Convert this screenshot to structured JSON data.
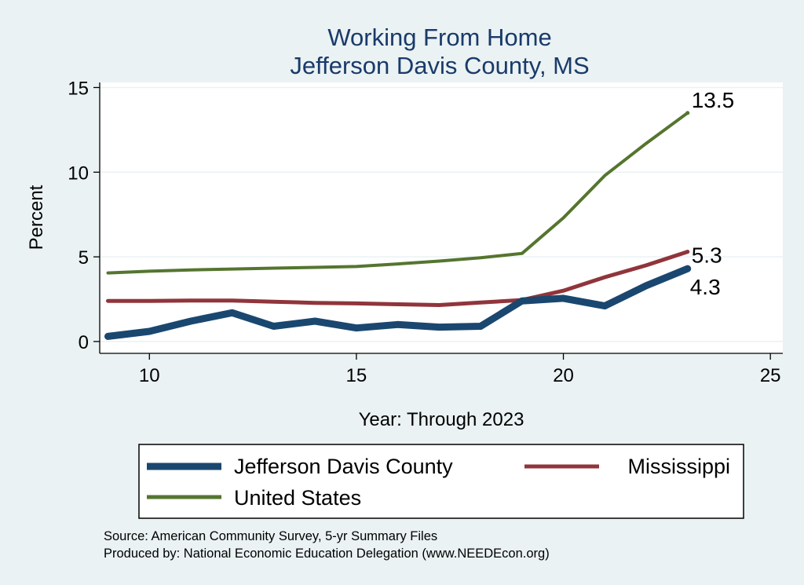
{
  "chart_data": {
    "type": "line",
    "title": "Working From Home",
    "subtitle": "Jefferson Davis County, MS",
    "xlabel": "Year: Through 2023",
    "ylabel": "Percent",
    "xlim": [
      8.8,
      25.3
    ],
    "ylim": [
      -0.7,
      15.3
    ],
    "xticks": [
      10,
      15,
      20,
      25
    ],
    "yticks": [
      0,
      5,
      10,
      15
    ],
    "grid": true,
    "legend_position": "bottom",
    "series": [
      {
        "name": "Jefferson Davis County",
        "color": "#1a476f",
        "x": [
          9,
          10,
          11,
          12,
          13,
          14,
          15,
          16,
          17,
          18,
          19,
          20,
          21,
          22,
          23
        ],
        "values": [
          0.3,
          0.6,
          1.2,
          1.7,
          0.9,
          1.2,
          0.8,
          1.0,
          0.85,
          0.9,
          2.4,
          2.55,
          2.1,
          3.3,
          4.3
        ],
        "end_label": "4.3"
      },
      {
        "name": "Mississippi",
        "color": "#90353b",
        "x": [
          9,
          10,
          11,
          12,
          13,
          14,
          15,
          16,
          17,
          18,
          19,
          20,
          21,
          22,
          23
        ],
        "values": [
          2.4,
          2.4,
          2.42,
          2.42,
          2.35,
          2.28,
          2.25,
          2.2,
          2.15,
          2.3,
          2.45,
          3.0,
          3.8,
          4.5,
          5.3
        ],
        "end_label": "5.3"
      },
      {
        "name": "United States",
        "color": "#55752f",
        "x": [
          9,
          10,
          11,
          12,
          13,
          14,
          15,
          16,
          17,
          18,
          19,
          20,
          21,
          22,
          23
        ],
        "values": [
          4.05,
          4.15,
          4.23,
          4.28,
          4.33,
          4.38,
          4.43,
          4.58,
          4.75,
          4.95,
          5.2,
          7.3,
          9.8,
          11.7,
          13.5
        ],
        "end_label": "13.5"
      }
    ],
    "notes": [
      "Source: American Community Survey, 5-yr Summary Files",
      "Produced by: National Economic Education Delegation (www.NEEDEcon.org)"
    ]
  }
}
